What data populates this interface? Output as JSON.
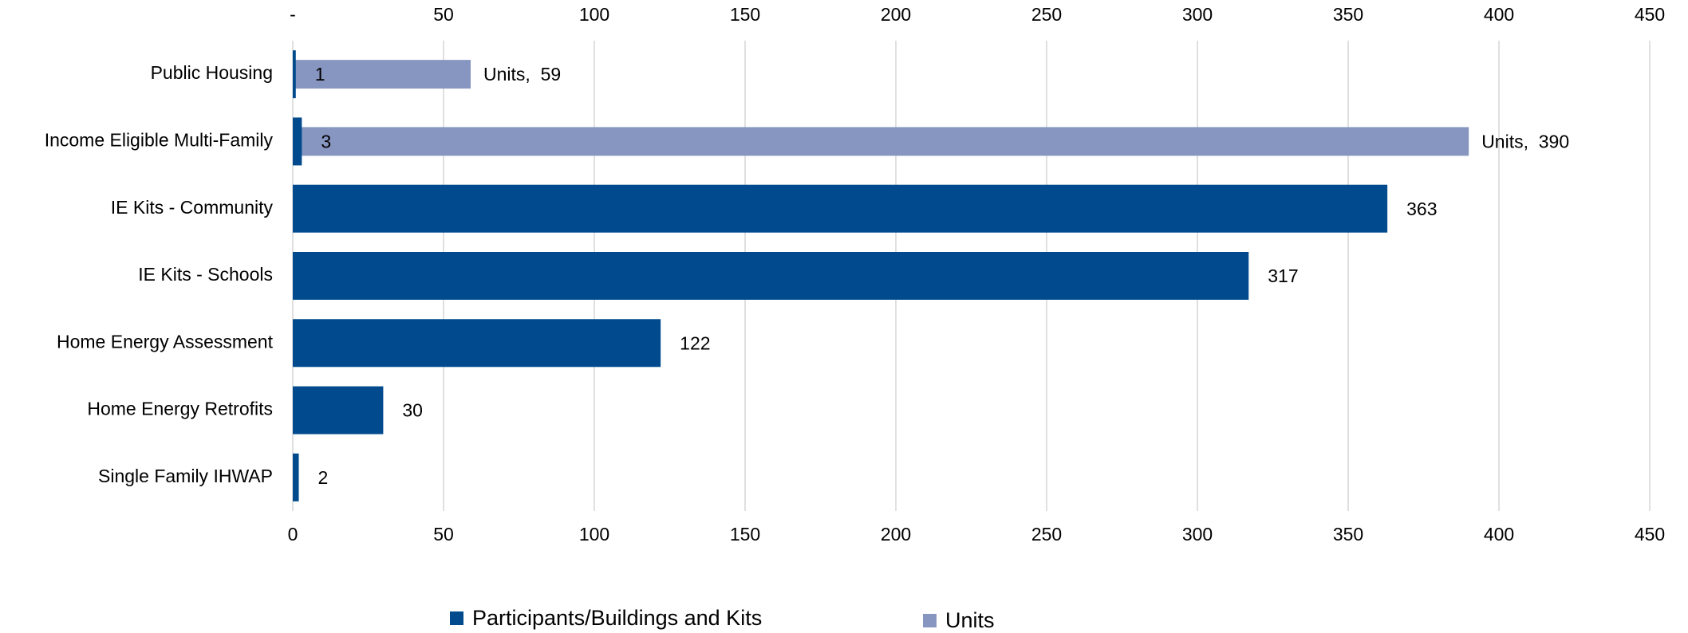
{
  "chart_data": {
    "type": "bar",
    "orientation": "horizontal",
    "categories": [
      "Public Housing",
      "Income Eligible Multi-Family",
      "IE Kits - Community",
      "IE Kits - Schools",
      "Home Energy Assessment",
      "Home Energy Retrofits",
      "Single Family IHWAP"
    ],
    "series": [
      {
        "name": "Participants/Buildings and Kits",
        "color": "#004a8d",
        "values": [
          1,
          3,
          363,
          317,
          122,
          30,
          2
        ]
      },
      {
        "name": "Units",
        "color": "#8796c0",
        "axis": "x2",
        "values": [
          59,
          390,
          null,
          null,
          null,
          null,
          null
        ],
        "value_labels": [
          "Units,  59",
          "Units,  390",
          null,
          null,
          null,
          null,
          null
        ]
      }
    ],
    "xlim": [
      0,
      450
    ],
    "xticks": [
      0,
      50,
      100,
      150,
      200,
      250,
      300,
      350,
      400,
      450
    ],
    "x2lim": [
      0,
      450
    ],
    "x2ticks": [
      {
        "value": 0,
        "label": "-"
      },
      50,
      100,
      150,
      200,
      250,
      300,
      350,
      400,
      450
    ],
    "grid": true,
    "legend": "bottom"
  }
}
